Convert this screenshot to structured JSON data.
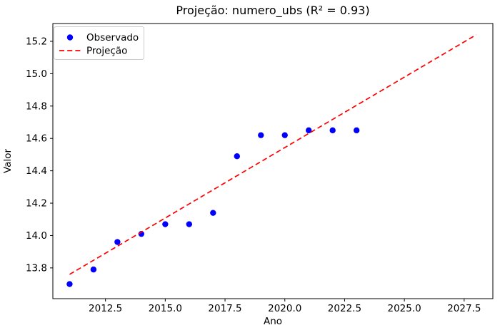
{
  "figure": {
    "background": "#ffffff"
  },
  "chart_data": {
    "type": "scatter",
    "title": "Projeção: numero_ubs (R² = 0.93)",
    "xlabel": "Ano",
    "ylabel": "Valor",
    "xlim": [
      2010.3,
      2028.7
    ],
    "ylim": [
      13.61,
      15.31
    ],
    "grid": false,
    "x_ticks": [
      2012.5,
      2015.0,
      2017.5,
      2020.0,
      2022.5,
      2025.0,
      2027.5
    ],
    "x_tick_labels": [
      "2012.5",
      "2015.0",
      "2017.5",
      "2020.0",
      "2022.5",
      "2025.0",
      "2027.5"
    ],
    "y_ticks": [
      13.8,
      14.0,
      14.2,
      14.4,
      14.6,
      14.8,
      15.0,
      15.2
    ],
    "y_tick_labels": [
      "13.8",
      "14.0",
      "14.2",
      "14.4",
      "14.6",
      "14.8",
      "15.0",
      "15.2"
    ],
    "series": [
      {
        "name": "Observado",
        "type": "scatter",
        "color": "#0000ff",
        "x": [
          2011,
          2012,
          2013,
          2014,
          2015,
          2016,
          2017,
          2018,
          2019,
          2020,
          2021,
          2022,
          2023
        ],
        "y": [
          13.7,
          13.79,
          13.96,
          14.01,
          14.07,
          14.07,
          14.14,
          14.49,
          14.62,
          14.62,
          14.65,
          14.65,
          14.65
        ]
      },
      {
        "name": "Projeção",
        "type": "line",
        "style": "dashed",
        "color": "#ff0000",
        "x": [
          2011,
          2028
        ],
        "y": [
          13.76,
          15.24
        ]
      }
    ],
    "legend": {
      "position": "upper left",
      "entries": [
        {
          "label": "Observado",
          "marker": "dot",
          "color": "#0000ff"
        },
        {
          "label": "Projeção",
          "marker": "dashed-line",
          "color": "#ff0000"
        }
      ]
    },
    "colors": {
      "spine": "#000000",
      "tick_text": "#000000",
      "legend_border": "#cccccc",
      "legend_bg": "#ffffff"
    }
  }
}
